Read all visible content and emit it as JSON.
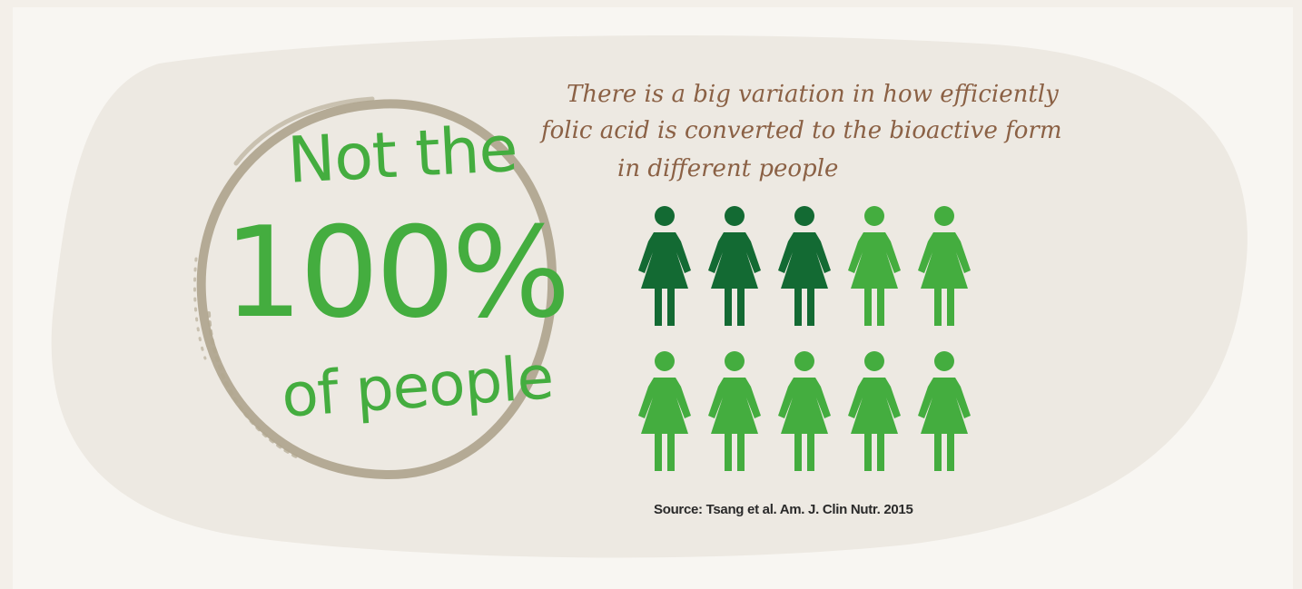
{
  "headline": {
    "line1": "Not the",
    "line2": "100%",
    "line3": "of people"
  },
  "description": {
    "line1": "There is a big variation in how efficiently",
    "line2": "folic acid is converted to the bioactive form",
    "line3": "in different people"
  },
  "people_grid": {
    "rows": 2,
    "columns": 5,
    "total": 10,
    "highlighted": 3,
    "icon": "woman-figure-icon",
    "colors": {
      "highlighted": "#136a33",
      "normal": "#44ad3f"
    }
  },
  "source": "Source: Tsang et al. Am. J. Clin Nutr. 2015",
  "colors": {
    "background": "#f8f6f2",
    "blob": "#ede9e2",
    "headline": "#44ad3f",
    "description": "#8b6145",
    "circle": "#b1a690"
  }
}
